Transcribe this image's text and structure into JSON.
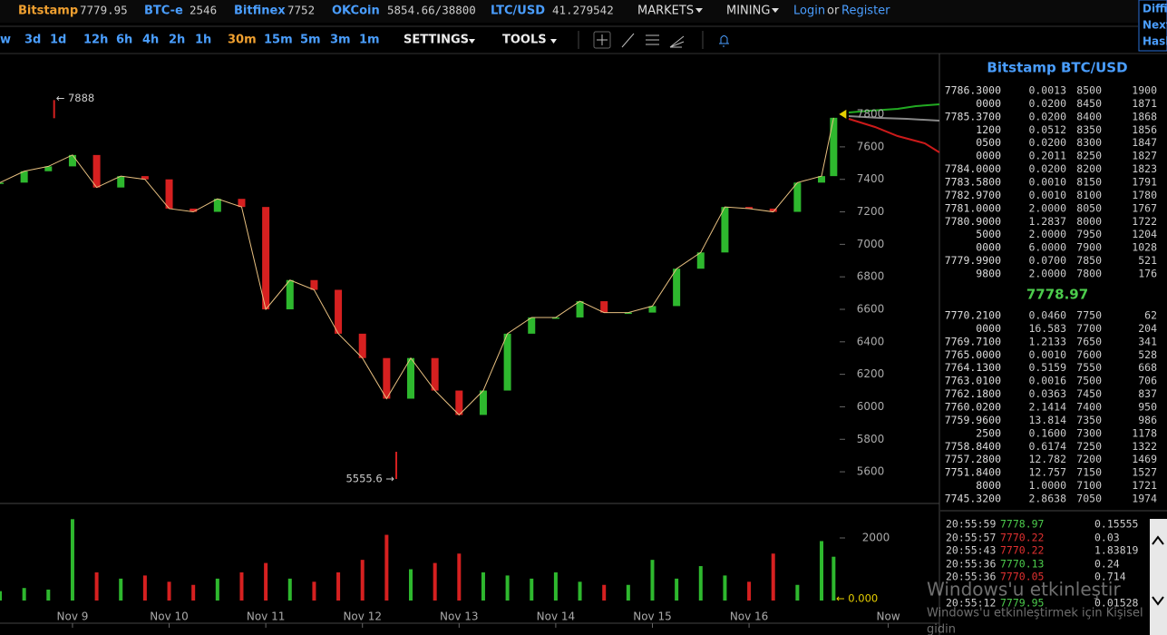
{
  "topbar": {
    "tickers": [
      {
        "name": "Bitstamp",
        "price": "7779.95"
      },
      {
        "name": "BTC-e",
        "price": "2546"
      },
      {
        "name": "Bitfinex",
        "price": "7752"
      },
      {
        "name": "OKCoin",
        "price": "5854.66/38800"
      },
      {
        "name": "LTC/USD",
        "price": "41.279542"
      }
    ],
    "menus": [
      "MARKETS",
      "MINING"
    ],
    "login": "Login",
    "or": "or",
    "register": "Register",
    "side": [
      "Diffi",
      "Next",
      "Hash"
    ]
  },
  "toolbar": {
    "periods": [
      "w",
      "3d",
      "1d",
      "12h",
      "6h",
      "4h",
      "2h",
      "1h",
      "30m",
      "15m",
      "5m",
      "3m",
      "1m"
    ],
    "active": 8,
    "menus": [
      "SETTINGS",
      "TOOLS"
    ]
  },
  "chart": {
    "type": "candlestick",
    "x": [
      -0.75,
      -0.5,
      -0.25,
      0,
      0.25,
      0.5,
      0.75,
      1,
      1.25,
      1.5,
      1.75,
      2,
      2.25,
      2.5,
      2.75,
      3,
      3.25,
      3.5,
      3.75,
      4,
      4.25,
      4.5,
      4.75,
      5,
      5.25,
      5.5,
      5.75,
      6,
      6.25,
      6.5,
      6.75,
      7,
      7.25,
      7.5,
      7.75,
      7.875
    ],
    "values": [
      7380,
      7450,
      7480,
      7550,
      7350,
      7420,
      7400,
      7220,
      7200,
      7280,
      7230,
      6600,
      6780,
      6720,
      6450,
      6300,
      6050,
      6300,
      6100,
      5950,
      6100,
      6450,
      6550,
      6550,
      6650,
      6580,
      6580,
      6620,
      6850,
      6950,
      7230,
      7220,
      7200,
      7380,
      7420,
      7779
    ],
    "volume": [
      300,
      400,
      350,
      2600,
      900,
      700,
      800,
      600,
      500,
      700,
      900,
      1200,
      700,
      600,
      900,
      1300,
      2100,
      1000,
      1200,
      1500,
      900,
      800,
      700,
      900,
      600,
      500,
      500,
      1300,
      700,
      1100,
      800,
      600,
      1500,
      500,
      1900,
      1400
    ],
    "xlim": [
      -0.75,
      8.96
    ],
    "xticks": [
      {
        "value": 0,
        "label": "Nov 9"
      },
      {
        "value": 1,
        "label": "Nov 10"
      },
      {
        "value": 2,
        "label": "Nov 11"
      },
      {
        "value": 3,
        "label": "Nov 12"
      },
      {
        "value": 4,
        "label": "Nov 13"
      },
      {
        "value": 5,
        "label": "Nov 14"
      },
      {
        "value": 6,
        "label": "Nov 15"
      },
      {
        "value": 7,
        "label": "Nov 16"
      },
      {
        "value": 8.44,
        "label": "Now"
      }
    ],
    "ylim": [
      5405,
      8169
    ],
    "yticks": [
      5600,
      5800,
      6000,
      6200,
      6400,
      6600,
      6800,
      7000,
      7200,
      7400,
      7600,
      7800
    ],
    "volume_ylim": [
      0,
      2957
    ],
    "volume_yticks": [
      2000
    ],
    "high": {
      "x": -0.19,
      "value": 7888,
      "label": "← 7888"
    },
    "low": {
      "x": 3.35,
      "value": 5555.6,
      "label": "5555.6 →"
    },
    "volume_last": {
      "value": 0,
      "label": "← 0.000"
    },
    "up_color": "#2eb82e",
    "down_color": "#d62020"
  },
  "orderbook": {
    "title": "Bitstamp BTC/USD",
    "asks": [
      [
        "7786.3000",
        "0.0013",
        "8500",
        "1900"
      ],
      [
        "0000",
        "0.0200",
        "8450",
        "1871"
      ],
      [
        "7785.3700",
        "0.0200",
        "8400",
        "1868"
      ],
      [
        "1200",
        "0.0512",
        "8350",
        "1856"
      ],
      [
        "0500",
        "0.0200",
        "8300",
        "1847"
      ],
      [
        "0000",
        "0.2011",
        "8250",
        "1827"
      ],
      [
        "7784.0000",
        "0.0200",
        "8200",
        "1823"
      ],
      [
        "7783.5800",
        "0.0010",
        "8150",
        "1791"
      ],
      [
        "7782.9700",
        "0.0010",
        "8100",
        "1780"
      ],
      [
        "7781.0000",
        "2.0000",
        "8050",
        "1767"
      ],
      [
        "7780.9000",
        "1.2837",
        "8000",
        "1722"
      ],
      [
        "5000",
        "2.0000",
        "7950",
        "1204"
      ],
      [
        "0000",
        "6.0000",
        "7900",
        "1028"
      ],
      [
        "7779.9900",
        "0.0700",
        "7850",
        "521"
      ],
      [
        "9800",
        "2.0000",
        "7800",
        "176"
      ]
    ],
    "last": "7778.97",
    "bids": [
      [
        "7770.2100",
        "0.0460",
        "7750",
        "62"
      ],
      [
        "0000",
        "16.583",
        "7700",
        "204"
      ],
      [
        "7769.7100",
        "1.2133",
        "7650",
        "341"
      ],
      [
        "7765.0000",
        "0.0010",
        "7600",
        "528"
      ],
      [
        "7764.1300",
        "0.5159",
        "7550",
        "668"
      ],
      [
        "7763.0100",
        "0.0016",
        "7500",
        "706"
      ],
      [
        "7762.1800",
        "0.0363",
        "7450",
        "837"
      ],
      [
        "7760.0200",
        "2.1414",
        "7400",
        "950"
      ],
      [
        "7759.9600",
        "13.814",
        "7350",
        "986"
      ],
      [
        "2500",
        "0.1600",
        "7300",
        "1178"
      ],
      [
        "7758.8400",
        "0.6174",
        "7250",
        "1322"
      ],
      [
        "7757.2800",
        "12.782",
        "7200",
        "1469"
      ],
      [
        "7751.8400",
        "12.757",
        "7150",
        "1527"
      ],
      [
        "8000",
        "1.0000",
        "7100",
        "1721"
      ],
      [
        "7745.3200",
        "2.8638",
        "7050",
        "1974"
      ]
    ]
  },
  "trades": [
    {
      "time": "20:55:59",
      "price": "7778.97",
      "amount": "0.15555",
      "color": "#4ccc4c"
    },
    {
      "time": "20:55:57",
      "price": "7770.22",
      "amount": "0.03",
      "color": "#e03030"
    },
    {
      "time": "20:55:43",
      "price": "7770.22",
      "amount": "1.83819",
      "color": "#e03030"
    },
    {
      "time": "20:55:36",
      "price": "7770.13",
      "amount": "0.24",
      "color": "#4ccc4c"
    },
    {
      "time": "20:55:36",
      "price": "7770.05",
      "amount": "0.714",
      "color": "#e03030"
    },
    {
      "time": "20:55:12",
      "price": "7779.95",
      "amount": "0.01528",
      "color": "#4ccc4c"
    }
  ],
  "watermark": {
    "title": "Windows'u etkinleştir",
    "lines": [
      "Windows'u etkinleştirmek için Kişisel",
      "gidin"
    ]
  }
}
